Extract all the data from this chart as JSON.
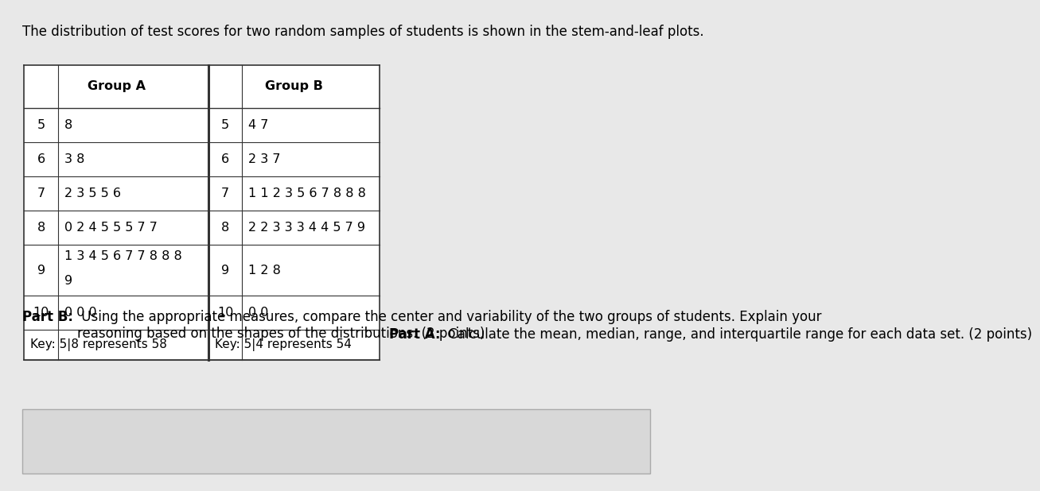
{
  "title": "The distribution of test scores for two random samples of students is shown in the stem-and-leaf plots.",
  "background_color": "#e8e8e8",
  "table_bg": "#ffffff",
  "group_a_header": "Group A",
  "group_b_header": "Group B",
  "rows": [
    {
      "stem": "5",
      "leaves_a": "8",
      "leaves_b": "4 7",
      "tall": false
    },
    {
      "stem": "6",
      "leaves_a": "3 8",
      "leaves_b": "2 3 7",
      "tall": false
    },
    {
      "stem": "7",
      "leaves_a": "2 3 5 5 6",
      "leaves_b": "1 1 2 3 5 6 7 8 8 8",
      "tall": false
    },
    {
      "stem": "8",
      "leaves_a": "0 2 4 5 5 5 7 7",
      "leaves_b": "2 2 3 3 3 4 4 5 7 9",
      "tall": false
    },
    {
      "stem": "9",
      "leaves_a_line1": "1 3 4 5 6 7 7 8 8 8",
      "leaves_a_line2": "9",
      "leaves_b": "1 2 8",
      "tall": true
    },
    {
      "stem": "10",
      "leaves_a": "0 0 0",
      "leaves_b": "0 0",
      "tall": false
    }
  ],
  "key_a": "Key: 5|8 represents 58",
  "key_b": "Key: 5|4 represents 54",
  "part_a_bold": "Part A:",
  "part_a_text": " Calculate the mean, median, range, and interquartile range for each data set. (2 points)",
  "part_b_bold": "Part B:",
  "part_b_text": " Using the appropriate measures, compare the center and variability of the two groups of students. Explain your\nreasoning based on the shapes of the distributions. (2 points)",
  "font_size_title": 12.0,
  "font_size_table": 11.5,
  "font_size_text": 12.0
}
